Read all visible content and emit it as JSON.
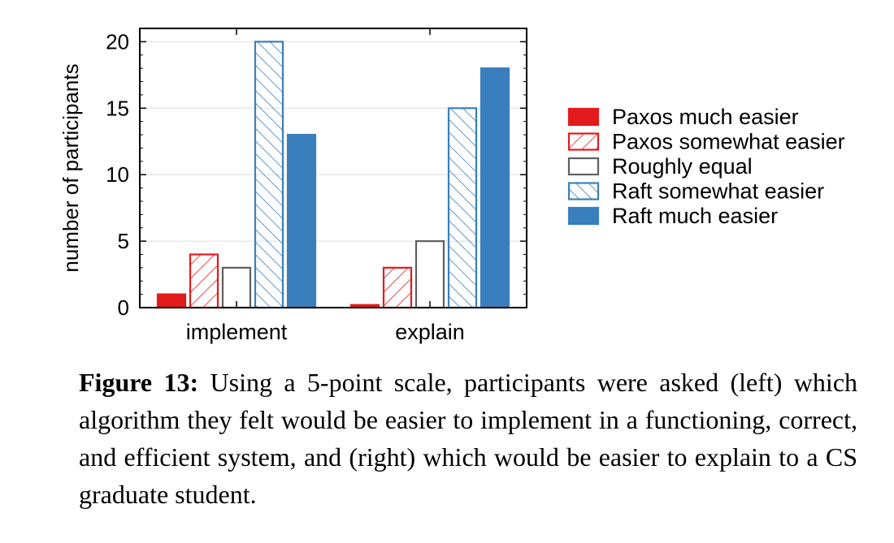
{
  "colors": {
    "paxos": "#e31a1c",
    "roughly": "#5f5f5f",
    "raft": "#3a7fbd"
  },
  "chart_data": {
    "type": "bar",
    "categories": [
      "implement",
      "explain"
    ],
    "series": [
      {
        "name": "Paxos much easier",
        "values": [
          1,
          0.2
        ],
        "color": "#e31a1c",
        "style": "solid"
      },
      {
        "name": "Paxos somewhat easier",
        "values": [
          4,
          3
        ],
        "color": "#e31a1c",
        "style": "hatch-forward"
      },
      {
        "name": "Roughly equal",
        "values": [
          3,
          5
        ],
        "color": "#5f5f5f",
        "style": "outline"
      },
      {
        "name": "Raft somewhat easier",
        "values": [
          20,
          15
        ],
        "color": "#3a7fbd",
        "style": "hatch-back"
      },
      {
        "name": "Raft much easier",
        "values": [
          13,
          18
        ],
        "color": "#3a7fbd",
        "style": "solid"
      }
    ],
    "ylabel": "number of participants",
    "xlabel": "",
    "ylim": [
      0,
      21
    ],
    "yticks": [
      0,
      5,
      10,
      15,
      20
    ],
    "grid": true,
    "legend_position": "right"
  },
  "caption": {
    "label": "Figure 13:",
    "text": "Using a 5-point scale, participants were asked (left) which algorithm they felt would be easier to implement in a functioning, correct, and efficient system, and (right) which would be easier to explain to a CS graduate student."
  }
}
